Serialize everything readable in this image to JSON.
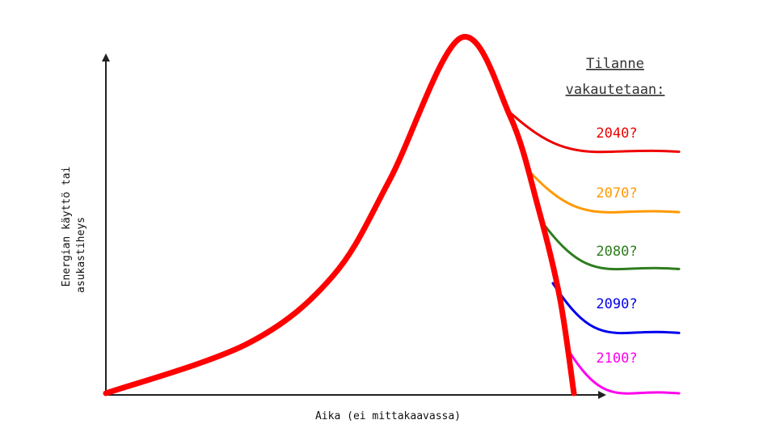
{
  "chart_data": {
    "type": "line",
    "title_lines": [
      "Tilanne",
      "vakautetaan:"
    ],
    "xlabel": "Aika (ei mittakaavassa)",
    "ylabel_lines": [
      "Energian käyttö tai",
      "asukastiheys"
    ],
    "ticks": "none",
    "grid": false,
    "legend": "right side, labels placed above each branch curve",
    "main_curve": {
      "color": "#ff0000",
      "description_values": "rises slowly, then steeply to a peak, then falls sharply to zero",
      "points": [
        [
          0,
          0.0
        ],
        [
          20,
          0.14
        ],
        [
          32,
          0.33
        ],
        [
          40,
          0.6
        ],
        [
          50,
          1.0
        ],
        [
          57,
          0.78
        ],
        [
          61,
          0.52
        ],
        [
          64,
          0.27
        ],
        [
          66,
          0.0
        ]
      ]
    },
    "series": [
      {
        "name": "2040?",
        "color": "#ee0000",
        "plateau": 0.68
      },
      {
        "name": "2070?",
        "color": "#ff9900",
        "plateau": 0.51
      },
      {
        "name": "2080?",
        "color": "#2e7d1e",
        "plateau": 0.35
      },
      {
        "name": "2090?",
        "color": "#0000ee",
        "plateau": 0.17
      },
      {
        "name": "2100?",
        "color": "#ff00ee",
        "plateau": 0.0
      }
    ]
  }
}
